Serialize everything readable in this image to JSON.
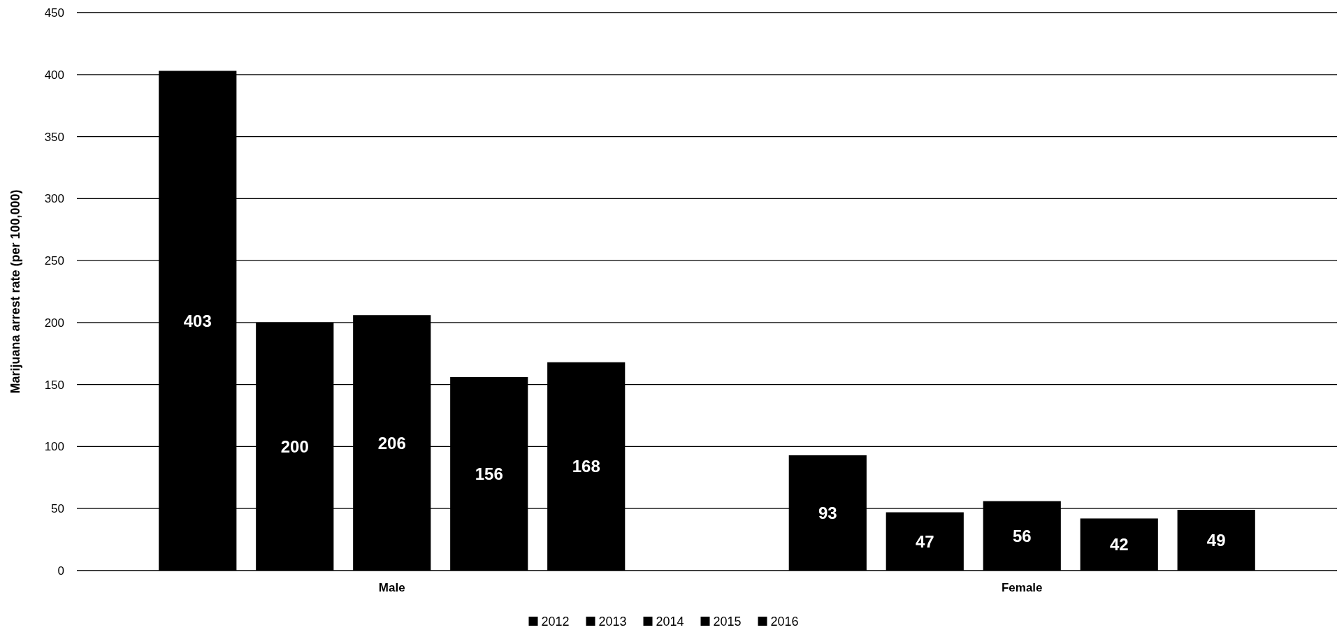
{
  "chart_data": {
    "type": "bar",
    "ylabel": "Marijuana arrest rate (per 100,000)",
    "categories": [
      "Male",
      "Female"
    ],
    "series": [
      {
        "name": "2012",
        "color": "#000000",
        "values": [
          403,
          93
        ]
      },
      {
        "name": "2013",
        "color": "#000000",
        "values": [
          200,
          47
        ]
      },
      {
        "name": "2014",
        "color": "#000000",
        "values": [
          206,
          56
        ]
      },
      {
        "name": "2015",
        "color": "#000000",
        "values": [
          156,
          42
        ]
      },
      {
        "name": "2016",
        "color": "#000000",
        "values": [
          168,
          49
        ]
      }
    ],
    "ylim": [
      0,
      450
    ],
    "yticks": [
      0,
      50,
      100,
      150,
      200,
      250,
      300,
      350,
      400,
      450
    ],
    "grid": "y",
    "legend": "bottom",
    "data_labels": true
  }
}
